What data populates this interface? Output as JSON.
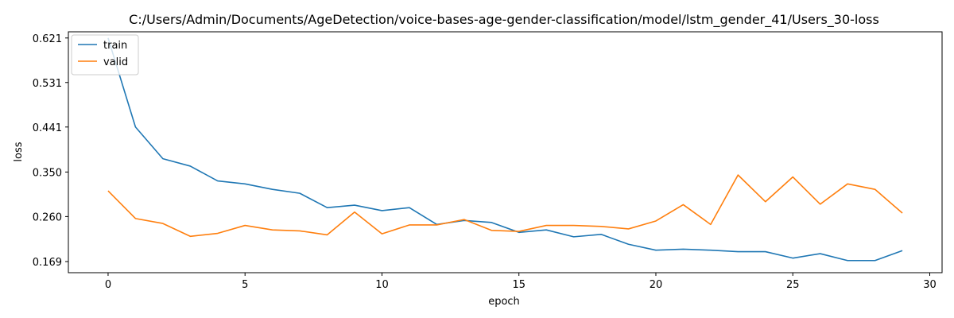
{
  "chart_data": {
    "type": "line",
    "title": "C:/Users/Admin/Documents/AgeDetection/voice-bases-age-gender-classification/model/lstm_gender_41/Users_30-loss",
    "xlabel": "epoch",
    "ylabel": "loss",
    "xlim": [
      -1.45,
      30.45
    ],
    "ylim": [
      0.1465,
      0.6335
    ],
    "x_ticks": [
      0,
      5,
      10,
      15,
      20,
      25,
      30
    ],
    "y_ticks": [
      0.169,
      0.26,
      0.35,
      0.441,
      0.531,
      0.621
    ],
    "y_tick_labels": [
      "0.169",
      "0.260",
      "0.350",
      "0.441",
      "0.531",
      "0.621"
    ],
    "x": [
      0,
      1,
      2,
      3,
      4,
      5,
      6,
      7,
      8,
      9,
      10,
      11,
      12,
      13,
      14,
      15,
      16,
      17,
      18,
      19,
      20,
      21,
      22,
      23,
      24,
      25,
      26,
      27,
      28,
      29
    ],
    "series": [
      {
        "name": "train",
        "color": "#1f77b4",
        "values": [
          0.621,
          0.441,
          0.377,
          0.362,
          0.332,
          0.326,
          0.315,
          0.307,
          0.278,
          0.283,
          0.272,
          0.278,
          0.244,
          0.252,
          0.248,
          0.228,
          0.233,
          0.219,
          0.224,
          0.204,
          0.192,
          0.194,
          0.192,
          0.189,
          0.189,
          0.176,
          0.185,
          0.171,
          0.171,
          0.191
        ]
      },
      {
        "name": "valid",
        "color": "#ff7f0e",
        "values": [
          0.312,
          0.256,
          0.246,
          0.22,
          0.226,
          0.242,
          0.233,
          0.231,
          0.223,
          0.269,
          0.225,
          0.243,
          0.243,
          0.254,
          0.232,
          0.23,
          0.242,
          0.242,
          0.24,
          0.235,
          0.251,
          0.284,
          0.244,
          0.344,
          0.29,
          0.34,
          0.285,
          0.326,
          0.315,
          0.267
        ]
      }
    ],
    "legend_position": "upper-left",
    "grid": false
  }
}
